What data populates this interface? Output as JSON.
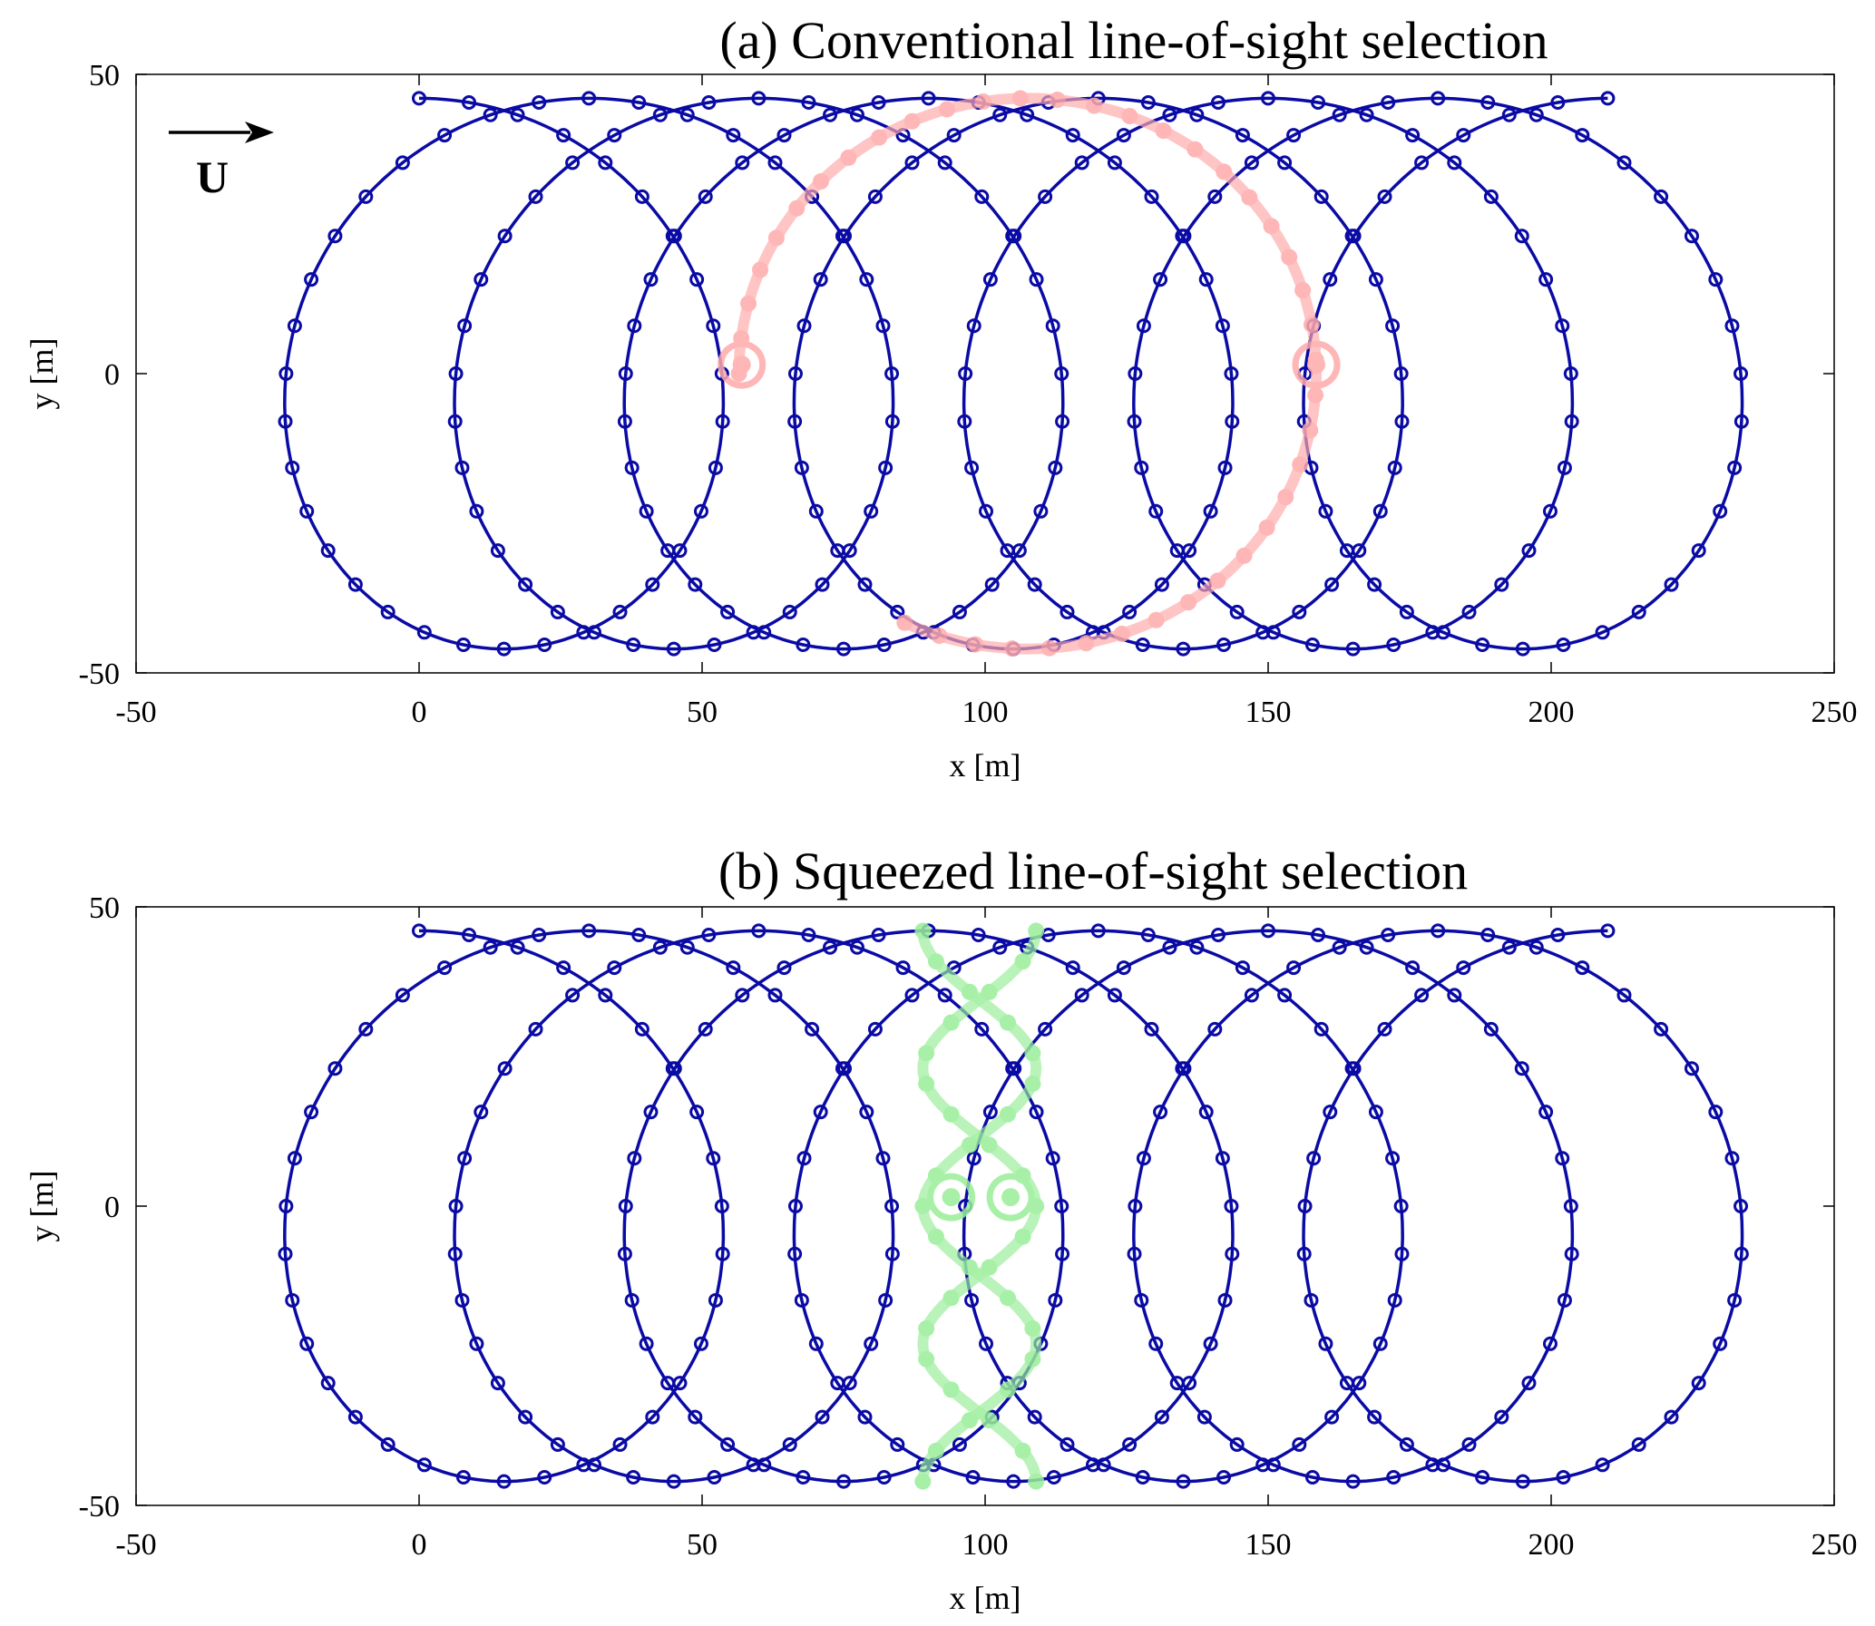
{
  "colors": {
    "trajectory": "#0a0aa5",
    "conventional_highlight": "#ffaaaa",
    "squeezed_highlight": "#99ee99",
    "axes": "#000000",
    "background": "#ffffff"
  },
  "wind": {
    "label": "U",
    "icon": "arrow-right-icon"
  },
  "chart_data": [
    {
      "type": "line",
      "title": "(a) Conventional line-of-sight selection",
      "xlabel": "x [m]",
      "ylabel": "y [m]",
      "xlim": [
        -50,
        250
      ],
      "ylim": [
        -50,
        50
      ],
      "xticks": [
        -50,
        0,
        50,
        100,
        150,
        200,
        250
      ],
      "yticks": [
        -50,
        0,
        50
      ],
      "grid": false,
      "series": [
        {
          "role": "all measurement points",
          "pattern": "trochoid",
          "center_start": [
            0,
            0
          ],
          "center_end": [
            210,
            0
          ],
          "radius": 46,
          "loops": 7,
          "points_per_loop": 36,
          "marker": "open-circle",
          "color": "#0a0aa5"
        },
        {
          "role": "selected points",
          "pattern": "arc",
          "center": [
            107.5,
            0
          ],
          "radius_x": 51,
          "radius_y": 46,
          "start_x": 57,
          "end_x": 159,
          "marker": "filled-circle",
          "endpoint_markers": [
            [
              57,
              1.5
            ],
            [
              158.5,
              1.5
            ]
          ],
          "color": "#ffaaaa"
        }
      ]
    },
    {
      "type": "line",
      "title": "(b) Squeezed line-of-sight selection",
      "xlabel": "x [m]",
      "ylabel": "y [m]",
      "xlim": [
        -50,
        250
      ],
      "ylim": [
        -50,
        50
      ],
      "xticks": [
        -50,
        0,
        50,
        100,
        150,
        200,
        250
      ],
      "yticks": [
        -50,
        0,
        50
      ],
      "grid": false,
      "series": [
        {
          "role": "all measurement points",
          "pattern": "trochoid",
          "center_start": [
            0,
            0
          ],
          "center_end": [
            210,
            0
          ],
          "radius": 46,
          "loops": 7,
          "points_per_loop": 36,
          "marker": "open-circle",
          "color": "#0a0aa5"
        },
        {
          "role": "selected points",
          "pattern": "squeezed-braid",
          "x_range": [
            89,
            109
          ],
          "endpoint_markers": [
            [
              94,
              1.5
            ],
            [
              104.5,
              1.5
            ]
          ],
          "marker": "filled-circle",
          "color": "#99ee99"
        }
      ]
    }
  ]
}
